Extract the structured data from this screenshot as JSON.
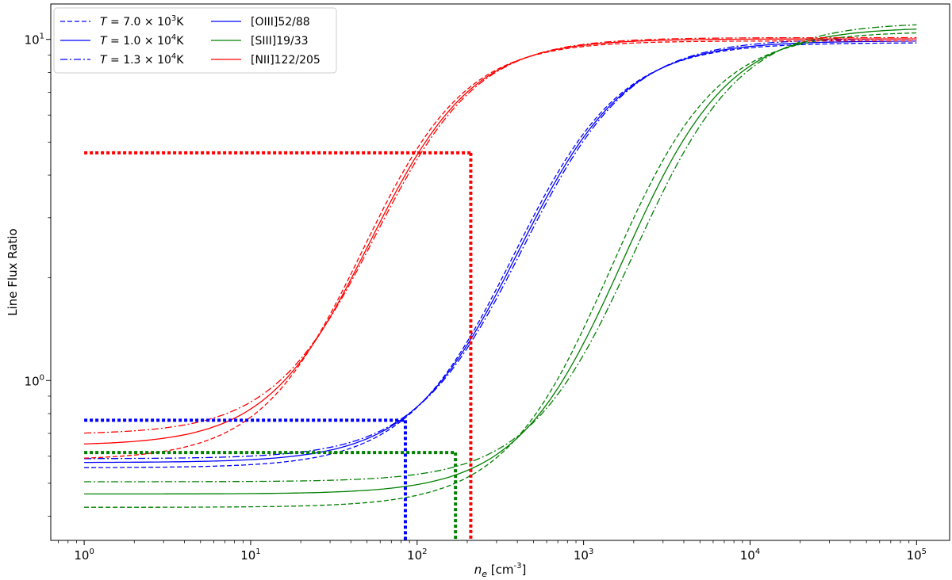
{
  "chart_data": {
    "type": "line",
    "title": "",
    "xlabel": "n_e [cm^-3]",
    "ylabel": "Line Flux Ratio",
    "xscale": "log",
    "yscale": "log",
    "xlim": [
      0.63,
      158000
    ],
    "ylim": [
      0.34,
      12.7
    ],
    "grid": false,
    "legend_position": "top-left",
    "x_ticks": [
      {
        "value": 1,
        "label": "10^0"
      },
      {
        "value": 10,
        "label": "10^1"
      },
      {
        "value": 100,
        "label": "10^2"
      },
      {
        "value": 1000,
        "label": "10^3"
      },
      {
        "value": 10000,
        "label": "10^4"
      },
      {
        "value": 100000,
        "label": "10^5"
      }
    ],
    "y_ticks": [
      {
        "value": 1,
        "label": "10^0"
      },
      {
        "value": 10,
        "label": "10^1"
      }
    ],
    "legend": {
      "styles": [
        {
          "label": "T = 7.0 × 10^3 K",
          "dash": "dashed"
        },
        {
          "label": "T = 1.0 × 10^4 K",
          "dash": "solid"
        },
        {
          "label": "T = 1.3 × 10^4 K",
          "dash": "dashdot"
        }
      ],
      "lines": [
        {
          "label": "[OIII]52/88",
          "color": "#0000ff"
        },
        {
          "label": "[SIII]19/33",
          "color": "#008000"
        },
        {
          "label": "[NII]122/205",
          "color": "#ff0000"
        }
      ]
    },
    "series": [
      {
        "line": "[OIII]52/88",
        "temperature": "7.0e3",
        "color": "#0000ff",
        "dash": "dashed",
        "low": 0.555,
        "high": 9.78,
        "center": 380,
        "width": 1.42
      },
      {
        "line": "[OIII]52/88",
        "temperature": "1.0e4",
        "color": "#0000ff",
        "dash": "solid",
        "low": 0.575,
        "high": 9.9,
        "center": 405,
        "width": 1.42
      },
      {
        "line": "[OIII]52/88",
        "temperature": "1.3e4",
        "color": "#0000ff",
        "dash": "dashdot",
        "low": 0.59,
        "high": 10.05,
        "center": 430,
        "width": 1.42
      },
      {
        "line": "[SIII]19/33",
        "temperature": "7.0e3",
        "color": "#008000",
        "dash": "dashed",
        "low": 0.425,
        "high": 10.55,
        "center": 1450,
        "width": 1.4
      },
      {
        "line": "[SIII]19/33",
        "temperature": "1.0e4",
        "color": "#008000",
        "dash": "solid",
        "low": 0.465,
        "high": 10.85,
        "center": 1720,
        "width": 1.4
      },
      {
        "line": "[SIII]19/33",
        "temperature": "1.3e4",
        "color": "#008000",
        "dash": "dashdot",
        "low": 0.505,
        "high": 11.2,
        "center": 2020,
        "width": 1.4
      },
      {
        "line": "[NII]122/205",
        "temperature": "7.0e3",
        "color": "#ff0000",
        "dash": "dashed",
        "low": 0.585,
        "high": 9.9,
        "center": 47,
        "width": 1.36
      },
      {
        "line": "[NII]122/205",
        "temperature": "1.0e4",
        "color": "#ff0000",
        "dash": "solid",
        "low": 0.645,
        "high": 10.03,
        "center": 52,
        "width": 1.36
      },
      {
        "line": "[NII]122/205",
        "temperature": "1.3e4",
        "color": "#ff0000",
        "dash": "dashdot",
        "low": 0.695,
        "high": 10.12,
        "center": 56,
        "width": 1.36
      }
    ],
    "guides": [
      {
        "color": "#ff0000",
        "x": 210,
        "y": 4.65
      },
      {
        "color": "#0000ff",
        "x": 85,
        "y": 0.765
      },
      {
        "color": "#008000",
        "x": 170,
        "y": 0.615
      }
    ]
  }
}
